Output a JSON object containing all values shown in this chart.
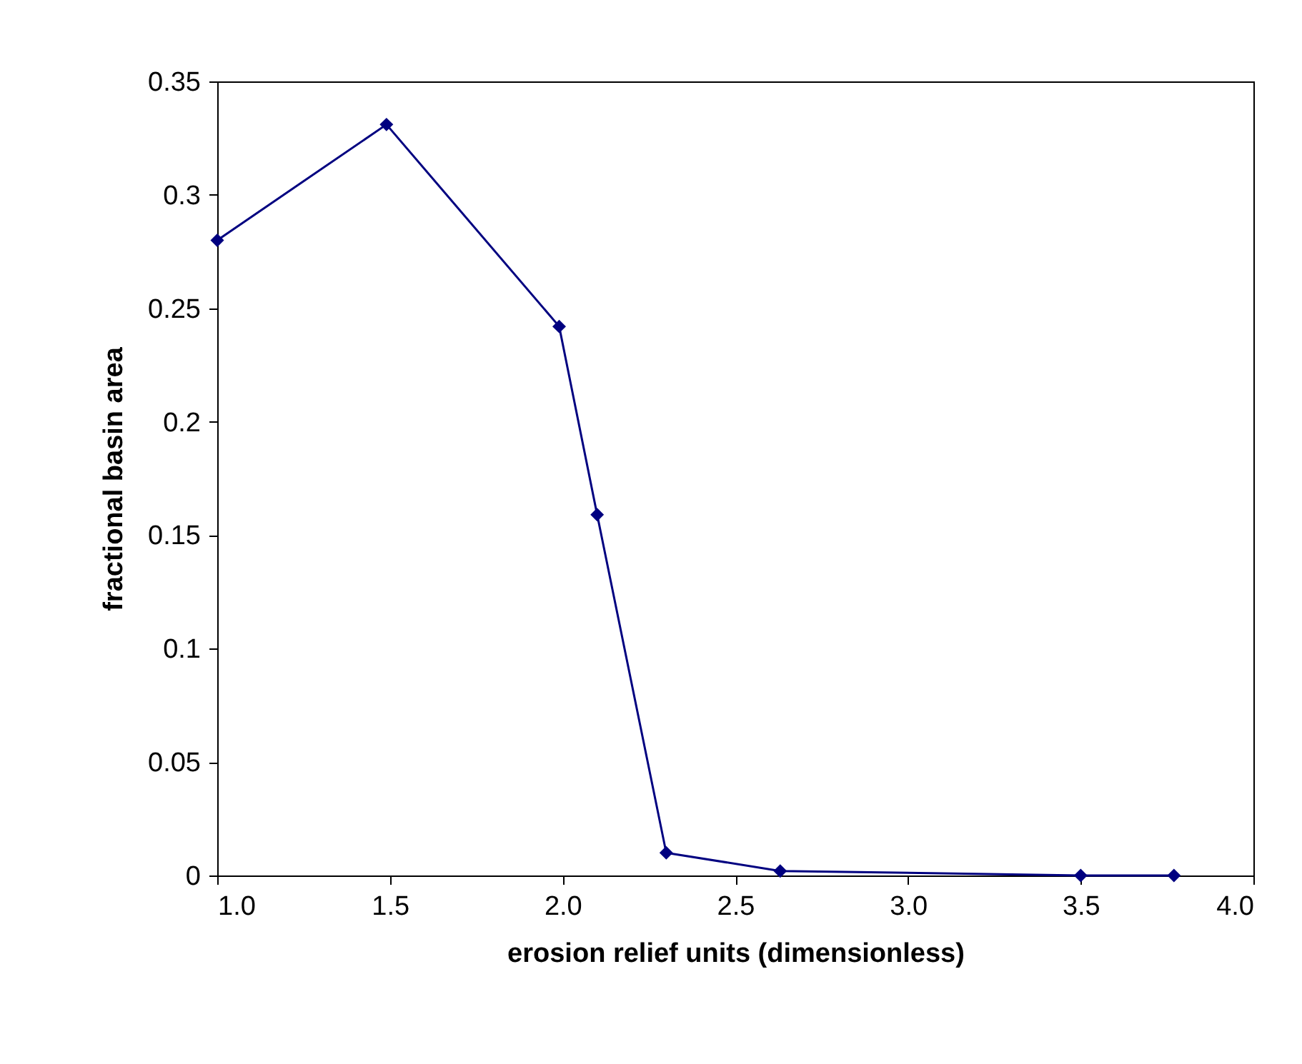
{
  "chart_data": {
    "type": "line",
    "xlabel": "erosion relief units (dimensionless)",
    "ylabel": "fractional basin area",
    "x": [
      1.0,
      1.49,
      1.99,
      2.1,
      2.3,
      2.63,
      3.5,
      3.77
    ],
    "series": [
      {
        "color": "#000080",
        "values": [
          0.28,
          0.331,
          0.242,
          0.159,
          0.01,
          0.002,
          0.0,
          0.0
        ]
      }
    ],
    "xlim": [
      1.0,
      4.0
    ],
    "xticks": [
      {
        "value": 1.0,
        "label": "1.0"
      },
      {
        "value": 1.5,
        "label": "1.5"
      },
      {
        "value": 2.0,
        "label": "2.0"
      },
      {
        "value": 2.5,
        "label": "2.5"
      },
      {
        "value": 3.0,
        "label": "3.0"
      },
      {
        "value": 3.5,
        "label": "3.5"
      },
      {
        "value": 4.0,
        "label": "4.0"
      }
    ],
    "ylim": [
      0,
      0.35
    ],
    "yticks": [
      0,
      0.05,
      0.1,
      0.15,
      0.2,
      0.25,
      0.3,
      0.35
    ],
    "marker": "diamond",
    "line_style": "solid",
    "grid": false
  }
}
